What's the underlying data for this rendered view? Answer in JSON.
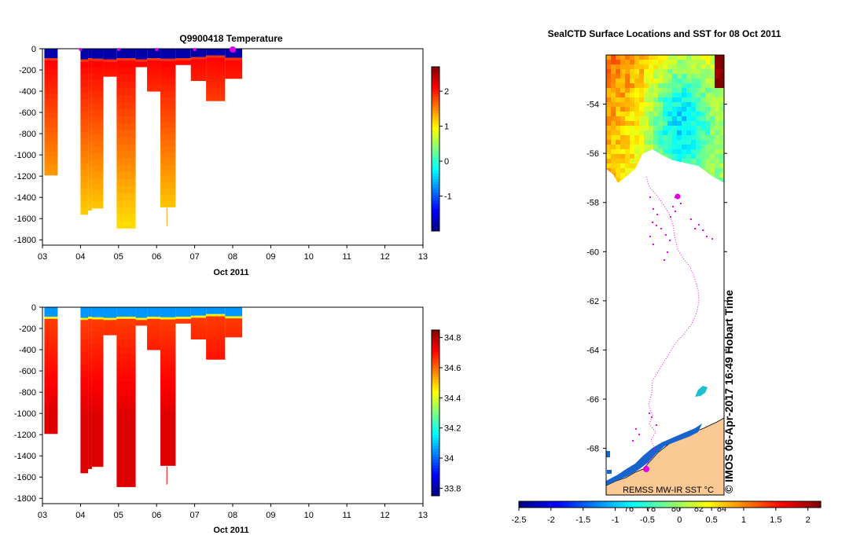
{
  "colors": {
    "cmap": [
      "#00007f",
      "#0000ff",
      "#007fff",
      "#00ffff",
      "#7fff7f",
      "#ffff00",
      "#ff7f00",
      "#ff0000",
      "#7f0000"
    ],
    "land": "#fbc994",
    "marker": "#e000e0",
    "track": "#ff00ff"
  },
  "chart_data": [
    {
      "type": "heatmap",
      "title": "Q9900418  Temperature",
      "xlabel": "Oct 2011",
      "x_ticks": [
        "03",
        "04",
        "05",
        "06",
        "07",
        "08",
        "09",
        "10",
        "11",
        "12",
        "13"
      ],
      "xlim": [
        3,
        13
      ],
      "y_ticks": [
        "0",
        "-200",
        "-400",
        "-600",
        "-800",
        "-1000",
        "-1200",
        "-1400",
        "-1600",
        "-1800"
      ],
      "ylim": [
        -1850,
        0
      ],
      "colorbar": {
        "min": -2,
        "max": 2.7,
        "ticks": [
          "2",
          "1",
          "0",
          "-1"
        ],
        "tick_values": [
          2,
          1,
          0,
          -1
        ]
      },
      "profile_markers_day": [
        4,
        5,
        6,
        7,
        8
      ],
      "profiles": [
        {
          "start": 3.05,
          "end": 3.4,
          "depth": 1190,
          "mld": 90
        },
        {
          "start": 4.0,
          "end": 4.2,
          "depth": 1560,
          "mld": 100
        },
        {
          "start": 4.2,
          "end": 4.3,
          "depth": 1520,
          "mld": 90
        },
        {
          "start": 4.3,
          "end": 4.6,
          "depth": 1500,
          "mld": 95
        },
        {
          "start": 4.6,
          "end": 4.95,
          "depth": 260,
          "mld": 100
        },
        {
          "start": 4.95,
          "end": 5.45,
          "depth": 1690,
          "mld": 90
        },
        {
          "start": 5.45,
          "end": 5.75,
          "depth": 170,
          "mld": 100
        },
        {
          "start": 5.75,
          "end": 6.1,
          "depth": 400,
          "mld": 90
        },
        {
          "start": 6.1,
          "end": 6.5,
          "depth": 1490,
          "mld": 95
        },
        {
          "start": 6.5,
          "end": 6.9,
          "depth": 150,
          "mld": 90
        },
        {
          "start": 6.9,
          "end": 7.3,
          "depth": 300,
          "mld": 80
        },
        {
          "start": 7.3,
          "end": 7.8,
          "depth": 490,
          "mld": 65
        },
        {
          "start": 7.8,
          "end": 8.25,
          "depth": 280,
          "mld": 85
        }
      ],
      "surface_temp": -1.8,
      "deep_temp_top": 2.1,
      "deep_temp_bottom": 1.1
    },
    {
      "type": "heatmap",
      "title": "",
      "xlabel": "Oct 2011",
      "x_ticks": [
        "03",
        "04",
        "05",
        "06",
        "07",
        "08",
        "09",
        "10",
        "11",
        "12",
        "13"
      ],
      "xlim": [
        3,
        13
      ],
      "y_ticks": [
        "0",
        "-200",
        "-400",
        "-600",
        "-800",
        "-1000",
        "-1200",
        "-1400",
        "-1600",
        "-1800"
      ],
      "ylim": [
        -1850,
        0
      ],
      "colorbar": {
        "min": 33.75,
        "max": 34.85,
        "ticks": [
          "34.8",
          "34.6",
          "34.4",
          "34.2",
          "34",
          "33.8"
        ],
        "tick_values": [
          34.8,
          34.6,
          34.4,
          34.2,
          34.0,
          33.8
        ]
      },
      "surface_sal": 34.05,
      "deep_sal_top": 34.65,
      "deep_sal_bottom": 34.75
    },
    {
      "type": "map",
      "title": "SealCTD Surface Locations and SST for 08 Oct 2011",
      "y_ticks": [
        "-54",
        "-56",
        "-58",
        "-60",
        "-62",
        "-64",
        "-66",
        "-68"
      ],
      "y_tick_values": [
        -54,
        -56,
        -58,
        -60,
        -62,
        -64,
        -66,
        -68
      ],
      "ylim": [
        -69.9,
        -52.0
      ],
      "x_ticks_partial": [
        "76",
        "78",
        "80",
        "82",
        "84"
      ],
      "colorbar": {
        "min": -2.5,
        "max": 2.2,
        "ticks": [
          "-2.5",
          "-2",
          "-1.5",
          "-1",
          "-0.5",
          "0",
          "0.5",
          "1",
          "1.5",
          "2"
        ],
        "tick_values": [
          -2.5,
          -2,
          -1.5,
          -1,
          -0.5,
          0,
          0.5,
          1,
          1.5,
          2
        ]
      },
      "sst_source_label": "REMSS MW-IR SST °C",
      "side_label": "© IMOS 06-Apr-2017 16:49 Hobart Time"
    }
  ]
}
